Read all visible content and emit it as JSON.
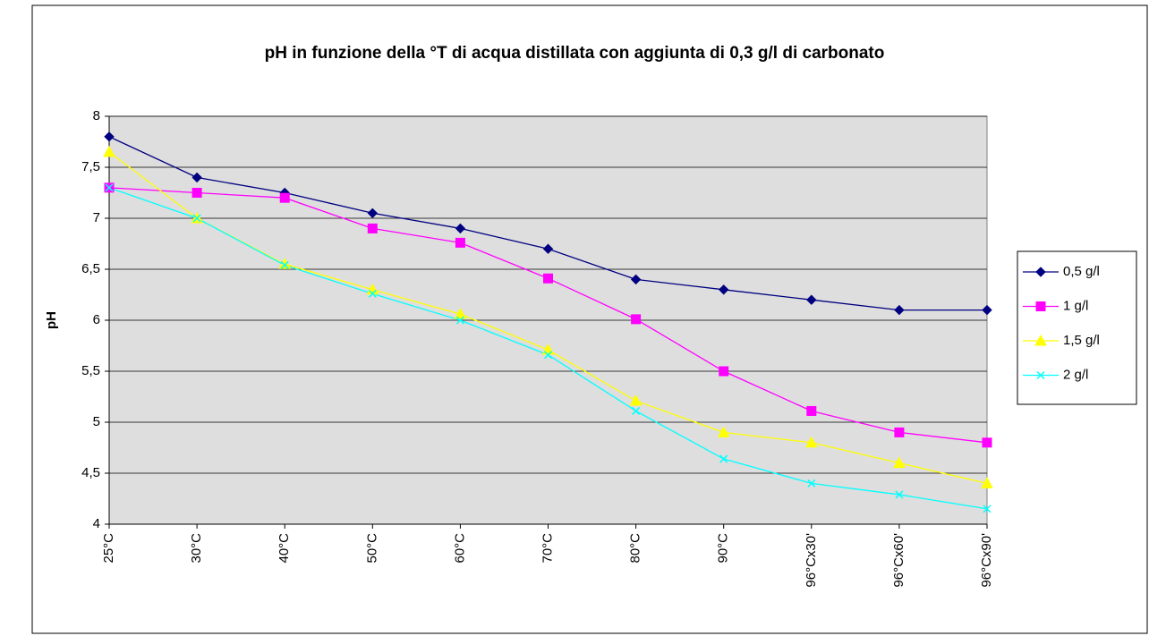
{
  "chart_data": {
    "type": "line",
    "title": "pH in funzione della °T di acqua distillata con aggiunta di 0,3 g/l di carbonato",
    "y_label": "pH",
    "categories": [
      "25°C",
      "30°C",
      "40°C",
      "50°C",
      "60°C",
      "70°C",
      "80°C",
      "90°C",
      "96°Cx30'",
      "96°Cx60'",
      "96°Cx90'"
    ],
    "series": [
      {
        "name": "0,5 g/l",
        "color": "#000080",
        "marker": "diamond",
        "values": [
          7.8,
          7.4,
          7.25,
          7.05,
          6.9,
          6.7,
          6.4,
          6.3,
          6.2,
          6.1,
          6.1
        ]
      },
      {
        "name": "1 g/l",
        "color": "#ff00ff",
        "marker": "square",
        "values": [
          7.3,
          7.25,
          7.2,
          6.9,
          6.76,
          6.41,
          6.01,
          5.5,
          5.11,
          4.9,
          4.8
        ]
      },
      {
        "name": "1,5 g/l",
        "color": "#ffff00",
        "marker": "triangle",
        "values": [
          7.65,
          7.0,
          6.55,
          6.3,
          6.06,
          5.71,
          5.21,
          4.9,
          4.8,
          4.6,
          4.4
        ]
      },
      {
        "name": "2 g/l",
        "color": "#00ffff",
        "marker": "x",
        "values": [
          7.3,
          7.0,
          6.54,
          6.26,
          6.0,
          5.66,
          5.11,
          4.64,
          4.4,
          4.29,
          4.15
        ]
      }
    ],
    "ylim": [
      4,
      8
    ],
    "yticks": [
      4,
      {
        "value": 4.5,
        "label": "4,5"
      },
      5,
      {
        "value": 5.5,
        "label": "5,5"
      },
      6,
      {
        "value": 6.5,
        "label": "6,5"
      },
      7,
      {
        "value": 7.5,
        "label": "7,5"
      },
      8
    ],
    "grid": true,
    "legend": "right"
  }
}
